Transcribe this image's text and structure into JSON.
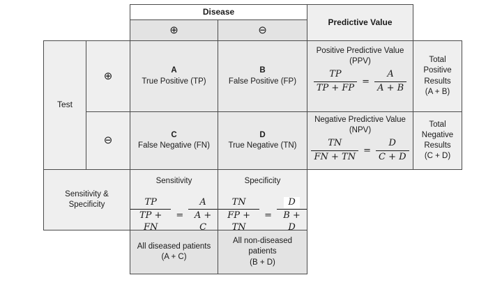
{
  "headers": {
    "disease": "Disease",
    "predictive_value": "Predictive Value",
    "positive_symbol": "⊕",
    "negative_symbol": "⊖",
    "test": "Test",
    "sens_spec_line1": "Sensitivity &",
    "sens_spec_line2": "Specificity"
  },
  "matrix": {
    "a": {
      "letter": "A",
      "label": "True Positive (TP)"
    },
    "b": {
      "letter": "B",
      "label": "False Positive (FP)"
    },
    "c": {
      "letter": "C",
      "label": "False Negative (FN)"
    },
    "d": {
      "letter": "D",
      "label": "True Negative (TN)"
    }
  },
  "ppv": {
    "title": "Positive Predictive Value",
    "abbr": "(PPV)",
    "num1": "TP",
    "den1": "TP + FP",
    "eq": "=",
    "num2": "A",
    "den2": "A + B"
  },
  "npv": {
    "title": "Negative Predictive Value",
    "abbr": "(NPV)",
    "num1": "TN",
    "den1": "FN + TN",
    "eq": "=",
    "num2": "D",
    "den2": "C + D"
  },
  "sensitivity": {
    "title": "Sensitivity",
    "num1": "TP",
    "den1": "TP + FN",
    "eq": "=",
    "num2": "A",
    "den2": "A + C"
  },
  "specificity": {
    "title": "Specificity",
    "num1": "TN",
    "den1": "FP + TN",
    "eq": "=",
    "num2": "D",
    "den2": "B + D"
  },
  "totals": {
    "positive": {
      "lines": [
        "Total",
        "Positive",
        "Results",
        "(A + B)"
      ]
    },
    "negative": {
      "lines": [
        "Total",
        "Negative",
        "Results",
        "(C + D)"
      ]
    }
  },
  "footers": {
    "diseased": {
      "lines": [
        "All diseased patients",
        "(A + C)"
      ]
    },
    "non_diseased": {
      "lines": [
        "All non-diseased",
        "patients",
        "(B + D)"
      ]
    }
  },
  "colors": {
    "border": "#4a4a4a",
    "cell_medium": "#e9e9e9",
    "cell_light": "#efefef",
    "cell_dark": "#e3e3e3",
    "header_bg": "#ffffff"
  }
}
